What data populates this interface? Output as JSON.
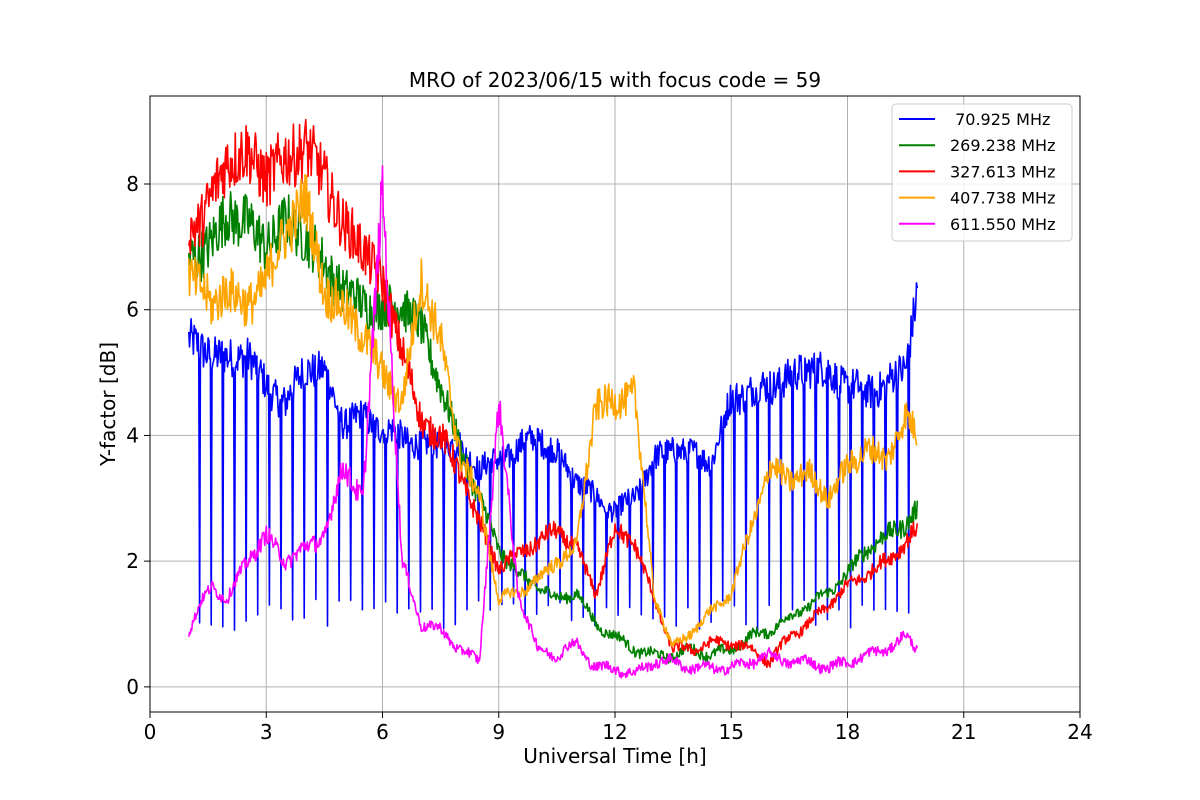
{
  "chart_data": {
    "type": "line",
    "title": "MRO of 2023/06/15 with focus code = 59",
    "xlabel": "Universal Time [h]",
    "ylabel": "Y-factor [dB]",
    "xlim": [
      0,
      24
    ],
    "ylim": [
      -0.4,
      9.4
    ],
    "xticks": [
      0,
      3,
      6,
      9,
      12,
      15,
      18,
      21,
      24
    ],
    "yticks": [
      0,
      2,
      4,
      6,
      8
    ],
    "grid": true,
    "legend_position": "top-right",
    "series": [
      {
        "name": " 70.925 MHz",
        "color": "#0000ff",
        "x": [
          1.0,
          1.3,
          1.6,
          2.0,
          2.5,
          3.0,
          3.5,
          4.0,
          4.5,
          5.0,
          5.5,
          6.0,
          6.5,
          7.0,
          7.5,
          8.0,
          8.5,
          9.0,
          9.5,
          10.0,
          10.5,
          11.0,
          11.5,
          12.0,
          12.5,
          13.0,
          13.5,
          14.0,
          14.5,
          15.0,
          15.5,
          16.0,
          16.5,
          17.0,
          17.5,
          18.0,
          18.5,
          19.0,
          19.5,
          19.8
        ],
        "y": [
          5.5,
          5.4,
          5.3,
          5.2,
          5.3,
          4.8,
          4.5,
          5.1,
          5.0,
          4.2,
          4.3,
          4.1,
          4.0,
          3.8,
          3.9,
          3.8,
          3.5,
          3.6,
          3.8,
          4.0,
          3.7,
          3.3,
          3.0,
          2.8,
          3.0,
          3.6,
          3.8,
          3.7,
          3.6,
          4.6,
          4.7,
          4.8,
          4.9,
          5.1,
          5.0,
          4.8,
          4.7,
          4.8,
          5.1,
          6.3
        ],
        "dip_period": 0.3,
        "dip_value": 0.9
      },
      {
        "name": "269.238 MHz",
        "color": "#008000",
        "x": [
          1.0,
          1.3,
          1.6,
          2.0,
          2.5,
          3.0,
          3.5,
          4.0,
          4.5,
          5.0,
          5.5,
          6.0,
          6.5,
          7.0,
          7.5,
          8.0,
          8.5,
          9.0,
          9.5,
          10.0,
          10.5,
          11.0,
          11.5,
          12.0,
          12.5,
          13.0,
          13.5,
          14.0,
          14.5,
          15.0,
          15.5,
          16.0,
          16.5,
          17.0,
          17.5,
          18.0,
          18.5,
          19.0,
          19.5,
          19.8
        ],
        "y": [
          6.8,
          6.9,
          7.1,
          7.5,
          7.4,
          7.0,
          7.4,
          7.2,
          6.7,
          6.3,
          6.1,
          6.0,
          6.1,
          5.7,
          4.8,
          3.8,
          3.0,
          2.2,
          1.8,
          1.6,
          1.4,
          1.5,
          1.0,
          0.8,
          0.6,
          0.5,
          0.5,
          0.6,
          0.5,
          0.6,
          0.8,
          0.9,
          1.1,
          1.3,
          1.5,
          1.8,
          2.2,
          2.4,
          2.6,
          2.8
        ]
      },
      {
        "name": "327.613 MHz",
        "color": "#ff0000",
        "x": [
          1.0,
          1.3,
          1.6,
          2.0,
          2.5,
          3.0,
          3.5,
          4.0,
          4.5,
          5.0,
          5.5,
          6.0,
          6.5,
          7.0,
          7.5,
          8.0,
          8.5,
          9.0,
          9.5,
          10.0,
          10.5,
          11.0,
          11.5,
          12.0,
          12.5,
          13.0,
          13.5,
          14.0,
          14.5,
          15.0,
          15.5,
          16.0,
          16.5,
          17.0,
          17.5,
          18.0,
          18.5,
          19.0,
          19.5,
          19.8
        ],
        "y": [
          7.3,
          7.4,
          7.8,
          8.4,
          8.5,
          8.1,
          8.4,
          8.6,
          8.1,
          7.3,
          7.0,
          6.4,
          5.4,
          4.2,
          4.0,
          3.4,
          2.6,
          1.9,
          2.1,
          2.3,
          2.5,
          2.2,
          1.5,
          2.5,
          2.3,
          1.4,
          0.6,
          0.6,
          0.7,
          0.7,
          0.6,
          0.4,
          0.8,
          1.0,
          1.3,
          1.6,
          1.8,
          2.0,
          2.3,
          2.5
        ]
      },
      {
        "name": "407.738 MHz",
        "color": "#ffa500",
        "x": [
          1.0,
          1.3,
          1.6,
          2.0,
          2.5,
          3.0,
          3.5,
          4.0,
          4.5,
          5.0,
          5.5,
          6.0,
          6.5,
          7.0,
          7.5,
          8.0,
          8.5,
          9.0,
          9.5,
          10.0,
          10.5,
          11.0,
          11.5,
          12.0,
          12.5,
          13.0,
          13.5,
          14.0,
          14.5,
          15.0,
          15.5,
          16.0,
          16.5,
          17.0,
          17.5,
          18.0,
          18.5,
          19.0,
          19.5,
          19.8
        ],
        "y": [
          6.6,
          6.4,
          6.0,
          6.4,
          6.0,
          6.5,
          7.2,
          7.8,
          6.3,
          6.0,
          5.6,
          5.0,
          4.5,
          6.5,
          5.5,
          3.7,
          3.0,
          1.4,
          1.5,
          1.7,
          2.0,
          2.2,
          4.5,
          4.5,
          4.7,
          1.5,
          0.6,
          0.9,
          1.2,
          1.5,
          2.5,
          3.5,
          3.3,
          3.4,
          3.0,
          3.5,
          3.8,
          3.6,
          4.3,
          4.0
        ]
      },
      {
        "name": "611.550 MHz",
        "color": "#ff00ff",
        "x": [
          1.0,
          1.3,
          1.6,
          2.0,
          2.5,
          3.0,
          3.5,
          4.0,
          4.5,
          5.0,
          5.5,
          6.0,
          6.5,
          7.0,
          7.5,
          8.0,
          8.5,
          9.0,
          9.5,
          10.0,
          10.5,
          11.0,
          11.5,
          12.0,
          12.5,
          13.0,
          13.5,
          14.0,
          14.5,
          15.0,
          15.5,
          16.0,
          16.5,
          17.0,
          17.5,
          18.0,
          18.5,
          19.0,
          19.5,
          19.8
        ],
        "y": [
          0.9,
          1.3,
          1.6,
          1.4,
          2.0,
          2.4,
          2.0,
          2.2,
          2.4,
          3.5,
          3.0,
          8.0,
          2.0,
          1.0,
          0.9,
          0.6,
          0.4,
          4.5,
          1.5,
          0.6,
          0.5,
          0.7,
          0.3,
          0.3,
          0.2,
          0.4,
          0.4,
          0.3,
          0.3,
          0.3,
          0.4,
          0.5,
          0.4,
          0.4,
          0.3,
          0.4,
          0.5,
          0.6,
          0.8,
          0.6
        ]
      }
    ]
  }
}
